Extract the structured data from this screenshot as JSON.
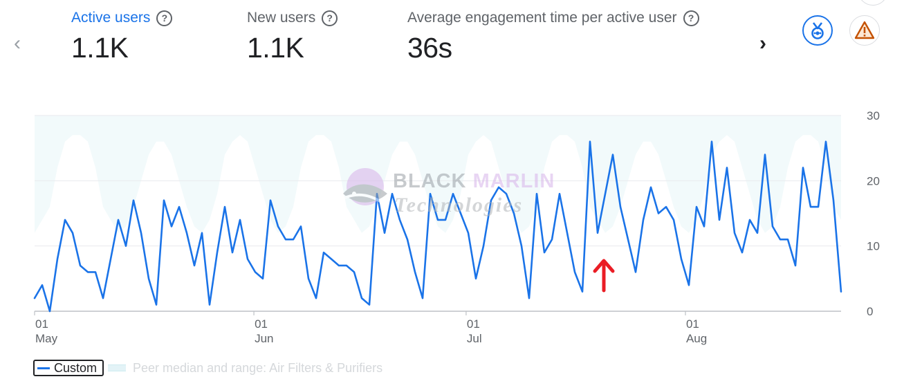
{
  "metrics": [
    {
      "label": "Active users",
      "value": "1.1K",
      "help": "?"
    },
    {
      "label": "New users",
      "value": "1.1K",
      "help": "?"
    },
    {
      "label": "Average engagement time per active user",
      "value": "36s",
      "help": "?"
    }
  ],
  "nav": {
    "prev": "‹",
    "next": "›"
  },
  "icons": {
    "prev": "chevron-left-icon",
    "next": "chevron-right-icon",
    "badge": "medal-icon",
    "warning": "warning-icon"
  },
  "colors": {
    "accent": "#1a73e8",
    "line": "#1a73e8",
    "peer_band": "#e8f6f8",
    "warning": "#e37400",
    "annotation": "#ea1d25"
  },
  "watermark": {
    "line1a": "BLACK",
    "line1b": "MARLIN",
    "line2": "Technologies"
  },
  "legend": {
    "custom": "Custom",
    "peer": "Peer median and range: Air Filters & Purifiers"
  },
  "chart_data": {
    "type": "line",
    "x_start": "2024-05-01",
    "x_end": "2024-08-23",
    "x_ticks": [
      {
        "date": "2024-05-01",
        "day": "01",
        "month": "May"
      },
      {
        "date": "2024-06-01",
        "day": "01",
        "month": "Jun"
      },
      {
        "date": "2024-07-01",
        "day": "01",
        "month": "Jul"
      },
      {
        "date": "2024-08-01",
        "day": "01",
        "month": "Aug"
      }
    ],
    "y_ticks": [
      0,
      10,
      20,
      30
    ],
    "ylim": [
      0,
      30
    ],
    "y_axis_position": "right",
    "grid": true,
    "series": [
      {
        "name": "Custom",
        "values": [
          2,
          4,
          0,
          8,
          14,
          12,
          7,
          6,
          6,
          2,
          8,
          14,
          10,
          17,
          12,
          5,
          1,
          17,
          13,
          16,
          12,
          7,
          12,
          1,
          9,
          16,
          9,
          14,
          8,
          6,
          5,
          17,
          13,
          11,
          11,
          13,
          5,
          2,
          9,
          8,
          7,
          7,
          6,
          2,
          1,
          18,
          12,
          18,
          14,
          11,
          6,
          2,
          18,
          14,
          14,
          18,
          15,
          12,
          5,
          10,
          17,
          19,
          18,
          15,
          10,
          2,
          18,
          9,
          11,
          18,
          12,
          6,
          3,
          26,
          12,
          18,
          24,
          16,
          11,
          6,
          14,
          19,
          15,
          16,
          14,
          8,
          4,
          16,
          13,
          26,
          14,
          22,
          12,
          9,
          14,
          12,
          24,
          13,
          11,
          11,
          7,
          22,
          16,
          16,
          26,
          17,
          3
        ]
      },
      {
        "name": "Peer median and range: Air Filters & Purifiers",
        "lower": [
          12,
          14,
          16,
          22,
          26,
          27,
          27,
          26,
          22,
          16,
          14,
          12,
          13,
          16,
          20,
          24,
          26,
          26,
          24,
          20,
          16,
          13,
          12,
          14,
          18,
          24,
          26,
          27,
          26,
          22,
          18,
          14,
          12,
          13,
          16,
          22,
          26,
          27,
          27,
          26,
          22,
          16,
          14,
          12,
          13,
          16,
          20,
          24,
          26,
          26,
          24,
          20,
          16,
          13,
          12,
          14,
          18,
          24,
          26,
          27,
          26,
          22,
          18,
          14,
          12,
          13,
          16,
          22,
          26,
          27,
          27,
          26,
          22,
          16,
          14,
          12,
          13,
          16,
          20,
          24,
          26,
          26,
          24,
          20,
          16,
          13,
          12,
          14,
          18,
          24,
          26,
          27,
          26,
          22,
          18,
          14,
          12,
          13,
          16,
          22,
          26,
          27,
          27,
          26,
          22,
          16,
          14
        ],
        "upper": 30
      }
    ]
  }
}
